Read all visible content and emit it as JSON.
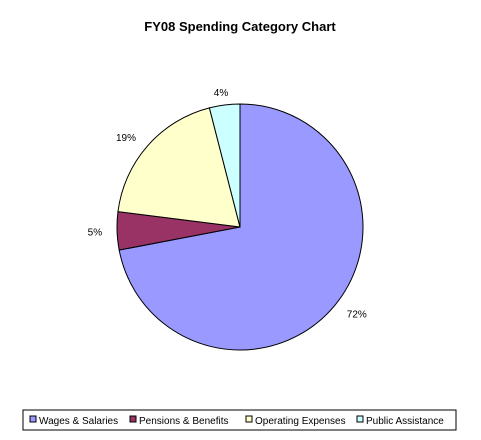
{
  "chart_data": {
    "type": "pie",
    "title": "FY08 Spending Category Chart",
    "slices": [
      {
        "name": "Wages & Salaries",
        "value": 72,
        "label": "72%",
        "color": "#9999ff"
      },
      {
        "name": "Pensions & Benefits",
        "value": 5,
        "label": "5%",
        "color": "#993366"
      },
      {
        "name": "Operating Expenses",
        "value": 19,
        "label": "19%",
        "color": "#ffffcc"
      },
      {
        "name": "Public Assistance",
        "value": 4,
        "label": "4%",
        "color": "#ccffff"
      }
    ],
    "legend_position": "bottom"
  }
}
